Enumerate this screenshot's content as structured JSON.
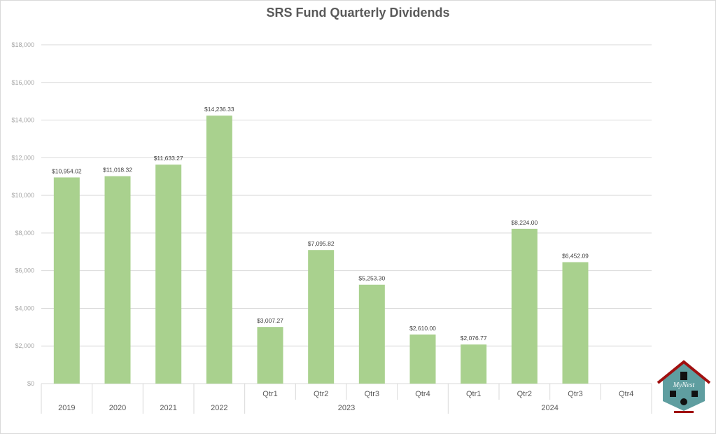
{
  "chart_data": {
    "type": "bar",
    "title": "SRS Fund Quarterly Dividends",
    "categories": [
      "2019",
      "2020",
      "2021",
      "2022",
      "Qtr1",
      "Qtr2",
      "Qtr3",
      "Qtr4",
      "Qtr1",
      "Qtr2",
      "Qtr3",
      "Qtr4"
    ],
    "groups": [
      {
        "label": "2019",
        "span": 1
      },
      {
        "label": "2020",
        "span": 1
      },
      {
        "label": "2021",
        "span": 1
      },
      {
        "label": "2022",
        "span": 1
      },
      {
        "label": "2023",
        "span": 4
      },
      {
        "label": "2024",
        "span": 4
      }
    ],
    "values": [
      10954.02,
      11018.32,
      11633.27,
      14236.33,
      3007.27,
      7095.82,
      5253.3,
      2610.0,
      2076.77,
      8224.0,
      6452.09,
      null
    ],
    "data_labels": [
      "$10,954.02",
      "$11,018.32",
      "$11,633.27",
      "$14,236.33",
      "$3,007.27",
      "$7,095.82",
      "$5,253.30",
      "$2,610.00",
      "$2,076.77",
      "$8,224.00",
      "$6,452.09",
      ""
    ],
    "y_ticks": [
      "$0",
      "$2,000",
      "$4,000",
      "$6,000",
      "$8,000",
      "$10,000",
      "$12,000",
      "$14,000",
      "$16,000",
      "$18,000"
    ],
    "ylim": [
      0,
      18000
    ],
    "grid": true,
    "legend": "none",
    "colors": {
      "bar": "#A9D18E",
      "grid": "#d9d9d9"
    }
  },
  "logo": {
    "text": "MyNest"
  }
}
